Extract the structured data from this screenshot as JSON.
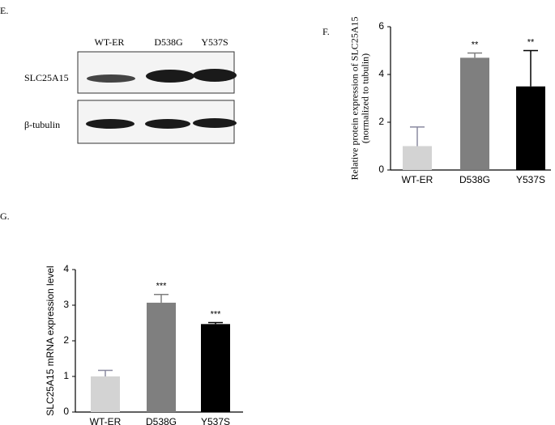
{
  "panel_e": {
    "label": "E.",
    "lanes": [
      "WT-ER",
      "D538G",
      "Y537S"
    ],
    "rows": [
      "SLC25A15",
      "β-tubulin"
    ]
  },
  "chart_data": [
    {
      "type": "bar",
      "panel_label": "F.",
      "ylabel": [
        "Relative protein expression of SLC25A15",
        "(normalized to tubulin)"
      ],
      "categories": [
        "WT-ER",
        "D538G",
        "Y537S"
      ],
      "values": [
        1,
        4.7,
        3.5
      ],
      "errors": [
        0.8,
        0.2,
        1.5
      ],
      "colors": [
        "#d3d3d3",
        "#7f7f7f",
        "#000000"
      ],
      "annotations": [
        null,
        "**",
        "**"
      ],
      "ylim": [
        0,
        6
      ],
      "yticks": [
        0,
        2,
        4,
        6
      ]
    },
    {
      "type": "bar",
      "panel_label": "G.",
      "ylabel": [
        "SLC25A15 mRNA expression level"
      ],
      "categories": [
        "WT-ER",
        "D538G",
        "Y537S"
      ],
      "values": [
        1,
        3.07,
        2.47
      ],
      "errors": [
        0.17,
        0.23,
        0.04
      ],
      "colors": [
        "#d3d3d3",
        "#7f7f7f",
        "#000000"
      ],
      "annotations": [
        null,
        "***",
        "***"
      ],
      "ylim": [
        0,
        4
      ],
      "yticks": [
        0,
        1,
        2,
        3,
        4
      ]
    }
  ]
}
